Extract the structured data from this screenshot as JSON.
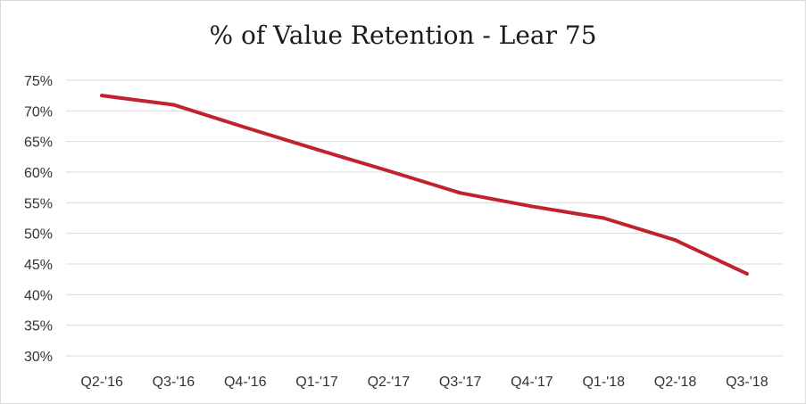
{
  "chart_data": {
    "type": "line",
    "title": "% of Value Retention - Lear 75",
    "xlabel": "",
    "ylabel": "",
    "categories": [
      "Q2-'16",
      "Q3-'16",
      "Q4-'16",
      "Q1-'17",
      "Q2-'17",
      "Q3-'17",
      "Q4-'17",
      "Q1-'18",
      "Q2-'18",
      "Q3-'18"
    ],
    "series": [
      {
        "values": [
          72.5,
          71.0,
          67.3,
          63.7,
          60.2,
          56.6,
          54.4,
          52.5,
          48.9,
          43.4
        ]
      }
    ],
    "ylim": [
      30,
      75
    ],
    "yticks": [
      30,
      35,
      40,
      45,
      50,
      55,
      60,
      65,
      70,
      75
    ],
    "ytick_labels": [
      "30%",
      "35%",
      "40%",
      "45%",
      "50%",
      "55%",
      "60%",
      "65%",
      "70%",
      "75%"
    ],
    "grid": true,
    "legend": "none",
    "line_color": "#c0232e",
    "grid_color": "#d9d9d9"
  }
}
